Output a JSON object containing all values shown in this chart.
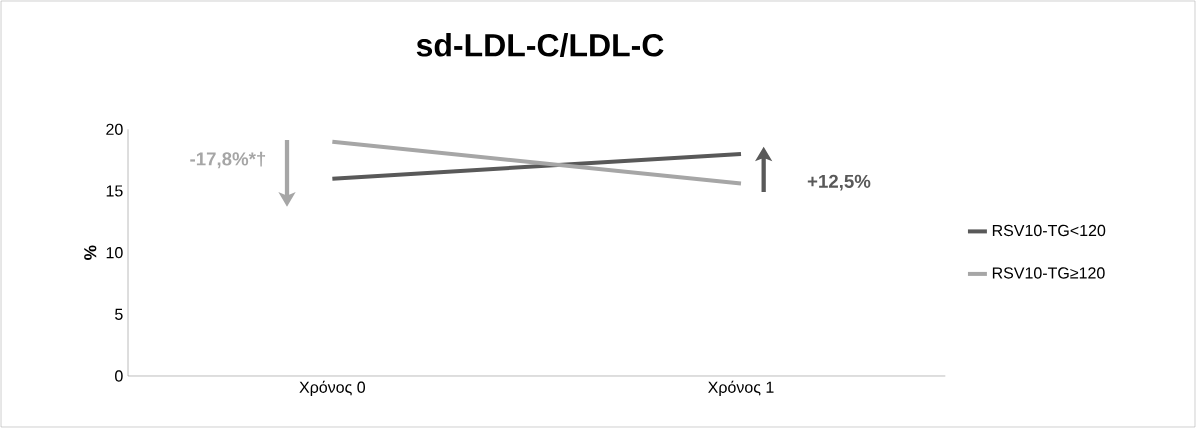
{
  "chart_data": {
    "type": "line",
    "title": "sd-LDL-C/LDL-C",
    "ylabel": "%",
    "categories": [
      "Χρόνος 0",
      "Χρόνος 1"
    ],
    "series": [
      {
        "name": "RSV10-TG<120",
        "color": "#595959",
        "values": [
          16.0,
          18.0
        ]
      },
      {
        "name": "RSV10-TG≥120",
        "color": "#a6a6a6",
        "values": [
          19.0,
          15.6
        ]
      }
    ],
    "ylim": [
      0,
      20
    ],
    "yticks": [
      0,
      5,
      10,
      15,
      20
    ],
    "grid": false,
    "legend": "right",
    "marker": "none",
    "line_style": "solid",
    "annotations": [
      "-17,8%*†",
      "+12,5%"
    ]
  }
}
